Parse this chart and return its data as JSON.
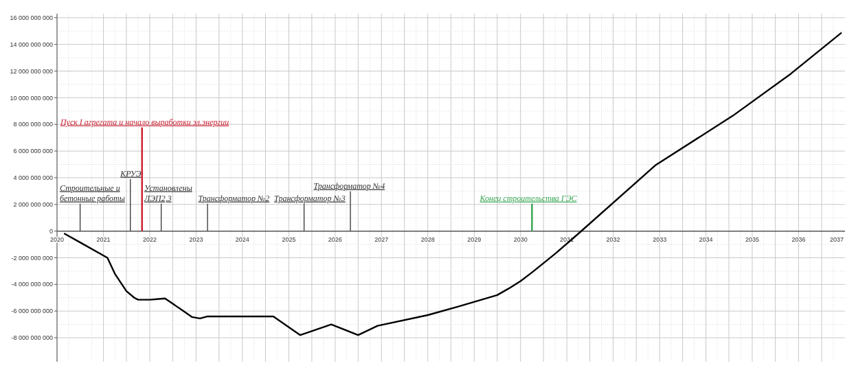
{
  "chart_data": {
    "type": "line",
    "x": [
      "2020-03",
      "2020-07",
      "2021-02",
      "2021-04",
      "2021-07",
      "2021-09",
      "2021-10",
      "2022-01",
      "2022-03",
      "2022-05",
      "2022-08",
      "2022-09",
      "2022-12",
      "2023-02",
      "2023-04",
      "2024-01",
      "2024-09",
      "2025-04",
      "2025-12",
      "2026-07",
      "2026-12",
      "2028-01",
      "2028-09",
      "2029-07",
      "2029-10",
      "2030-01",
      "2030-04",
      "2030-10",
      "2031-04",
      "2032-12",
      "2034-08",
      "2035-11",
      "2036-12"
    ],
    "series": [
      {
        "color": "#000000",
        "values": [
          -200000000,
          -850000000,
          -2000000000,
          -3200000000,
          -4500000000,
          -5000000000,
          -5150000000,
          -5150000000,
          -5100000000,
          -5050000000,
          -5650000000,
          -5850000000,
          -6450000000,
          -6550000000,
          -6400000000,
          -6400000000,
          -6400000000,
          -7800000000,
          -7000000000,
          -7800000000,
          -7100000000,
          -6300000000,
          -5650000000,
          -4800000000,
          -4300000000,
          -3750000000,
          -3100000000,
          -1700000000,
          -200000000,
          4950000000,
          8650000000,
          11800000000,
          14850000000
        ]
      }
    ],
    "xlim": [
      "2020",
      "2037"
    ],
    "xticks": [
      "2020",
      "2021",
      "2022",
      "2023",
      "2024",
      "2025",
      "2026",
      "2027",
      "2028",
      "2029",
      "2030",
      "2031",
      "2032",
      "2033",
      "2034",
      "2035",
      "2036",
      "2037"
    ],
    "ylim": [
      -9800000000,
      16300000000
    ],
    "yticks": [
      {
        "value": -8000000000,
        "label": "-8 000 000 000"
      },
      {
        "value": -6000000000,
        "label": "-6 000 000 000"
      },
      {
        "value": -4000000000,
        "label": "-4 000 000 000"
      },
      {
        "value": -2000000000,
        "label": "-2 000 000 000"
      },
      {
        "value": 0,
        "label": "0"
      },
      {
        "value": 2000000000,
        "label": "2 000 000 000"
      },
      {
        "value": 4000000000,
        "label": "4 000 000 000"
      },
      {
        "value": 6000000000,
        "label": "6 000 000 000"
      },
      {
        "value": 8000000000,
        "label": "8 000 000 000"
      },
      {
        "value": 10000000000,
        "label": "10 000 000 000"
      },
      {
        "value": 12000000000,
        "label": "12 000 000 000"
      },
      {
        "value": 14000000000,
        "label": "14 000 000 000"
      },
      {
        "value": 16000000000,
        "label": "16 000 000 000"
      }
    ],
    "grid": true,
    "marker": "none",
    "line_style": "solid",
    "ref_lines": [
      {
        "axis": "x",
        "value": "2020-07",
        "label": "Строительные и\nбетонные работы",
        "color": "#333333"
      },
      {
        "axis": "x",
        "value": "2021-08",
        "label": "КРУЭ",
        "color": "#333333"
      },
      {
        "axis": "x",
        "value": "2021-11",
        "label": "Пуск I агрегата и начало выработки эл.энергии",
        "color": "#cc2233"
      },
      {
        "axis": "x",
        "value": "2022-04",
        "label": "Установлены\nЛЭП2,3",
        "color": "#333333"
      },
      {
        "axis": "x",
        "value": "2023-04",
        "label": "Трансформатор №2",
        "color": "#333333"
      },
      {
        "axis": "x",
        "value": "2025-05",
        "label": "Трансформатор №3",
        "color": "#333333"
      },
      {
        "axis": "x",
        "value": "2026-05",
        "label": "Трансформатор №4",
        "color": "#333333"
      },
      {
        "axis": "x",
        "value": "2030-04",
        "label": "Конец строительства ГЭС",
        "color": "#3aa655"
      }
    ]
  }
}
